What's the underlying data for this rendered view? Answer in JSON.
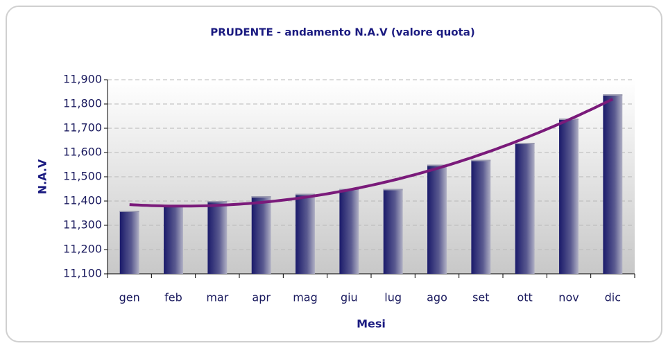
{
  "chart_data": {
    "type": "bar",
    "title": "PRUDENTE - andamento N.A.V (valore quota)",
    "x_label": "Mesi",
    "y_label": "N.A.V",
    "categories": [
      "gen",
      "feb",
      "mar",
      "apr",
      "mag",
      "giu",
      "lug",
      "ago",
      "set",
      "ott",
      "nov",
      "dic"
    ],
    "values": [
      11.36,
      11.38,
      11.4,
      11.42,
      11.43,
      11.45,
      11.45,
      11.55,
      11.57,
      11.64,
      11.74,
      11.84
    ],
    "color": "#1f1f70",
    "trendline": {
      "color": "#7a1a7a"
    },
    "ylim": [
      11.1,
      11.9
    ],
    "yticks": [
      {
        "value": 11.1,
        "label": "11,100"
      },
      {
        "value": 11.2,
        "label": "11,200"
      },
      {
        "value": 11.3,
        "label": "11,300"
      },
      {
        "value": 11.4,
        "label": "11,400"
      },
      {
        "value": 11.5,
        "label": "11,500"
      },
      {
        "value": 11.6,
        "label": "11,600"
      },
      {
        "value": 11.7,
        "label": "11,700"
      },
      {
        "value": 11.8,
        "label": "11,800"
      },
      {
        "value": 11.9,
        "label": "11,900"
      }
    ],
    "grid": true
  }
}
